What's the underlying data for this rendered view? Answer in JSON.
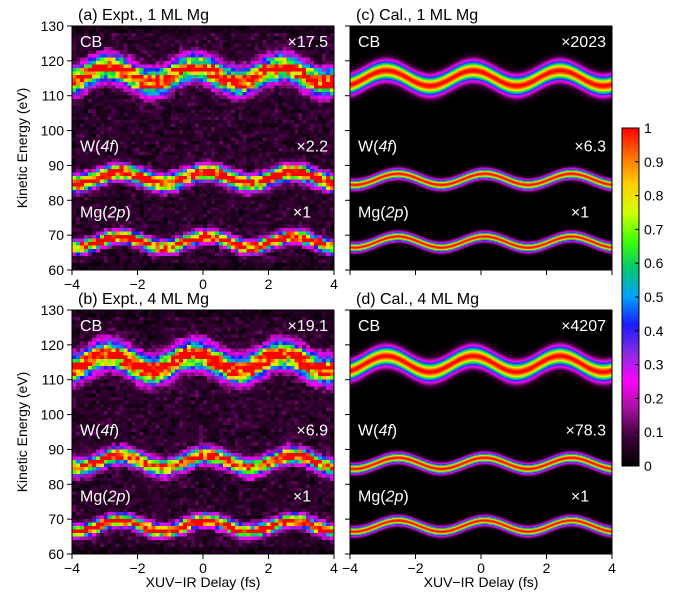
{
  "figure": {
    "shared_ylabel": "Kinetic Energy (eV)",
    "shared_xlabel": "XUV−IR Delay (fs)"
  },
  "colorbar": {
    "ticks": [
      "0",
      "0.1",
      "0.2",
      "0.3",
      "0.4",
      "0.5",
      "0.6",
      "0.7",
      "0.8",
      "0.9",
      "1"
    ],
    "range": [
      0,
      1
    ],
    "colors": [
      "#000000",
      "#3a0038",
      "#a0109a",
      "#ff00ff",
      "#8a2be2",
      "#1a1aff",
      "#00a0ff",
      "#00c870",
      "#40ff00",
      "#d0ff00",
      "#ffd000",
      "#ff7000",
      "#ff0000"
    ]
  },
  "chart_data": [
    {
      "type": "heatmap",
      "panel": "a",
      "title": "(a) Expt., 1 ML Mg",
      "xlabel": "",
      "ylabel": "Kinetic Energy (eV)",
      "xlim": [
        -4,
        4
      ],
      "ylim": [
        60,
        130
      ],
      "xticks": [
        "−4",
        "−2",
        "0",
        "2",
        "4"
      ],
      "yticks": [
        "60",
        "70",
        "80",
        "90",
        "100",
        "110",
        "120",
        "130"
      ],
      "noisy": true,
      "bands": [
        {
          "label": "CB",
          "scale": "×17.5",
          "center_ev": 116,
          "amplitude_ev": 2.2,
          "width_ev": 3.2
        },
        {
          "label": "W(4f)",
          "scale": "×2.2",
          "center_ev": 86.5,
          "amplitude_ev": 1.6,
          "width_ev": 2.0
        },
        {
          "label": "Mg(2p)",
          "scale": "×1",
          "center_ev": 68,
          "amplitude_ev": 1.6,
          "width_ev": 1.6
        }
      ]
    },
    {
      "type": "heatmap",
      "panel": "c",
      "title": "(c) Cal., 1 ML Mg",
      "xlabel": "",
      "ylabel": "",
      "xlim": [
        -4,
        4
      ],
      "ylim": [
        60,
        130
      ],
      "xticks": [
        "",
        "",
        "",
        "",
        ""
      ],
      "yticks": [
        "",
        "",
        "",
        "",
        "",
        "",
        "",
        ""
      ],
      "noisy": false,
      "bands": [
        {
          "label": "CB",
          "scale": "×2023",
          "center_ev": 115,
          "amplitude_ev": 2.2,
          "width_ev": 2.6
        },
        {
          "label": "W(4f)",
          "scale": "×6.3",
          "center_ev": 86,
          "amplitude_ev": 1.6,
          "width_ev": 1.3
        },
        {
          "label": "Mg(2p)",
          "scale": "×1",
          "center_ev": 68,
          "amplitude_ev": 1.6,
          "width_ev": 1.2
        }
      ]
    },
    {
      "type": "heatmap",
      "panel": "b",
      "title": "(b) Expt., 4 ML Mg",
      "xlabel": "XUV−IR Delay (fs)",
      "ylabel": "Kinetic Energy (eV)",
      "xlim": [
        -4,
        4
      ],
      "ylim": [
        60,
        130
      ],
      "xticks": [
        "−4",
        "−2",
        "0",
        "2",
        "4"
      ],
      "yticks": [
        "60",
        "70",
        "80",
        "90",
        "100",
        "110",
        "120",
        "130"
      ],
      "noisy": true,
      "bands": [
        {
          "label": "CB",
          "scale": "×19.1",
          "center_ev": 115,
          "amplitude_ev": 2.4,
          "width_ev": 3.4
        },
        {
          "label": "W(4f)",
          "scale": "×6.9",
          "center_ev": 86.5,
          "amplitude_ev": 1.8,
          "width_ev": 2.0
        },
        {
          "label": "Mg(2p)",
          "scale": "×1",
          "center_ev": 68,
          "amplitude_ev": 1.6,
          "width_ev": 1.6
        }
      ]
    },
    {
      "type": "heatmap",
      "panel": "d",
      "title": "(d) Cal., 4 ML Mg",
      "xlabel": "XUV−IR Delay (fs)",
      "ylabel": "",
      "xlim": [
        -4,
        4
      ],
      "ylim": [
        60,
        130
      ],
      "xticks": [
        "−4",
        "−2",
        "0",
        "2",
        "4"
      ],
      "yticks": [
        "",
        "",
        "",
        "",
        "",
        "",
        "",
        ""
      ],
      "noisy": false,
      "bands": [
        {
          "label": "CB",
          "scale": "×4207",
          "center_ev": 114.5,
          "amplitude_ev": 2.3,
          "width_ev": 2.6
        },
        {
          "label": "W(4f)",
          "scale": "×78.3",
          "center_ev": 86,
          "amplitude_ev": 1.6,
          "width_ev": 1.3
        },
        {
          "label": "Mg(2p)",
          "scale": "×1",
          "center_ev": 68,
          "amplitude_ev": 1.6,
          "width_ev": 1.2
        }
      ]
    }
  ]
}
